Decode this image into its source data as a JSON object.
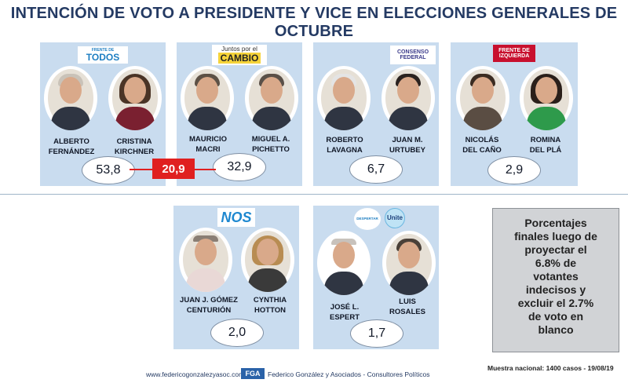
{
  "title": "INTENCIÓN DE VOTO A PRESIDENTE Y VICE EN ELECCIONES GENERALES DE OCTUBRE",
  "cards": [
    {
      "logo": "FRENTE DE TODOS",
      "logo_top": "FRENTE DE",
      "logo_main": "TODOS",
      "candidates": [
        {
          "line1": "ALBERTO",
          "line2": "FERNÁNDEZ"
        },
        {
          "line1": "CRISTINA",
          "line2": "KIRCHNER"
        }
      ],
      "value": "53,8"
    },
    {
      "logo": "Juntos por el CAMBIO",
      "logo_top": "Juntos por el",
      "logo_main": "CAMBIO",
      "candidates": [
        {
          "line1": "MAURICIO",
          "line2": "MACRI"
        },
        {
          "line1": "MIGUEL A.",
          "line2": "PICHETTO"
        }
      ],
      "value": "32,9"
    },
    {
      "logo": "CONSENSO FEDERAL",
      "logo_top": "CONSENSO",
      "logo_main": "FEDERAL",
      "candidates": [
        {
          "line1": "ROBERTO",
          "line2": "LAVAGNA"
        },
        {
          "line1": "JUAN M.",
          "line2": "URTUBEY"
        }
      ],
      "value": "6,7"
    },
    {
      "logo": "FRENTE DE IZQUIERDA",
      "logo_top": "FRENTE DE",
      "logo_main": "IZQUIERDA",
      "candidates": [
        {
          "line1": "NICOLÁS",
          "line2": "DEL CAÑO"
        },
        {
          "line1": "ROMINA",
          "line2": "DEL PLÁ"
        }
      ],
      "value": "2,9"
    },
    {
      "logo": "NOS",
      "logo_top": "",
      "logo_main": "NOS",
      "candidates": [
        {
          "line1": "JUAN J. GÓMEZ",
          "line2": "CENTURIÓN"
        },
        {
          "line1": "CYNTHIA",
          "line2": "HOTTON"
        }
      ],
      "value": "2,0"
    },
    {
      "logo": "DESPERTAR Unite",
      "logo_main": "DESPERTAR",
      "logo_second": "Unite",
      "candidates": [
        {
          "line1": "JOSÉ L.",
          "line2": "ESPERT"
        },
        {
          "line1": "LUIS",
          "line2": "ROSALES"
        }
      ],
      "value": "1,7"
    }
  ],
  "difference": "20,9",
  "note": "Porcentajes finales luego de proyectar el 6.8% de votantes indecisos y excluir el 2.7% de voto en blanco",
  "note_display": "Porcentajes\nfinales luego de\nproyectar el\n6.8%  de\nvotantes\nindecisos y\nexcluir el 2.7%\nde voto en\nblanco",
  "footer": {
    "url": "www.federicogonzalezyasoc.com",
    "logo": "FGA",
    "org": "Federico González y Asociados - Consultores Políticos",
    "sample": "Muestra nacional: 1400 casos - 19/08/19"
  },
  "colors": {
    "card_bg": "#c9dcef",
    "title": "#243a63",
    "difference_bg": "#e02020",
    "note_bg": "#d1d3d6"
  }
}
